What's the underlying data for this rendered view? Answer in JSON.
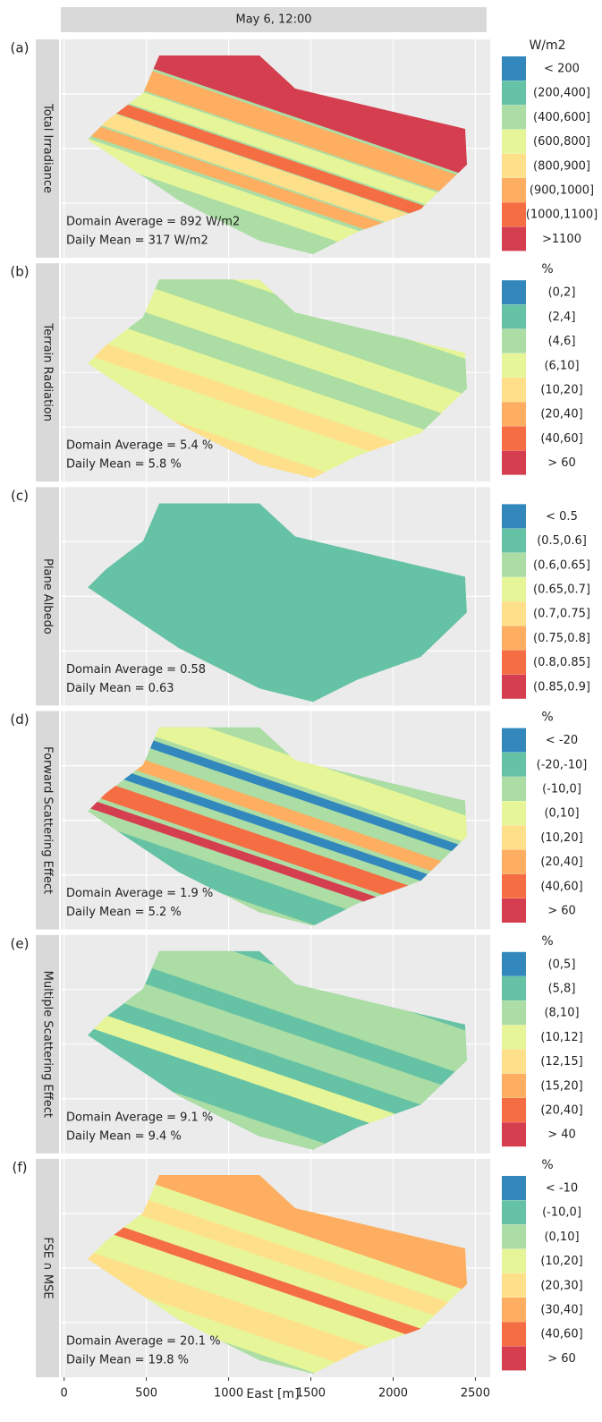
{
  "chart_data": {
    "type": "map",
    "title": "May 6, 12:00",
    "xlabel": "East [m]",
    "xlim": [
      -20,
      2590
    ],
    "xticks": [
      0,
      500,
      1000,
      1500,
      2000,
      2500
    ],
    "colors": [
      "#3288bd",
      "#66c2a5",
      "#abdda4",
      "#e6f598",
      "#fee08b",
      "#fdae61",
      "#f46d43",
      "#d53e4f"
    ],
    "panels": [
      {
        "tag": "(a)",
        "title": "Total Irradiance",
        "legend_title": "W/m2",
        "categories": [
          "< 200",
          "(200,400]",
          "(400,600]",
          "(600,800]",
          "(800,900]",
          "(900,1000]",
          "(1000,1100]",
          ">1100"
        ],
        "annotations": [
          "Domain Average = 892 W/m2",
          "Daily Mean = 317 W/m2"
        ]
      },
      {
        "tag": "(b)",
        "title": "Terrain Radiation",
        "legend_title": "%",
        "categories": [
          "(0,2]",
          "(2,4]",
          "(4,6]",
          "(6,10]",
          "(10,20]",
          "(20,40]",
          "(40,60]",
          "> 60"
        ],
        "annotations": [
          "Domain Average = 5.4 %",
          "Daily Mean = 5.8 %"
        ]
      },
      {
        "tag": "(c)",
        "title": "Plane Albedo",
        "legend_title": "",
        "categories": [
          "< 0.5",
          "(0.5,0.6]",
          "(0.6,0.65]",
          "(0.65,0.7]",
          "(0.7,0.75]",
          "(0.75,0.8]",
          "(0.8,0.85]",
          "(0.85,0.9]"
        ],
        "annotations": [
          "Domain Average = 0.58",
          "Daily Mean = 0.63"
        ]
      },
      {
        "tag": "(d)",
        "title": "Forward Scattering Effect",
        "legend_title": "%",
        "categories": [
          "< -20",
          "(-20,-10]",
          "(-10,0]",
          "(0,10]",
          "(10,20]",
          "(20,40]",
          "(40,60]",
          "> 60"
        ],
        "annotations": [
          "Domain Average = 1.9 %",
          "Daily Mean = 5.2 %"
        ]
      },
      {
        "tag": "(e)",
        "title": "Multiple Scattering Effect",
        "legend_title": "%",
        "categories": [
          "(0,5]",
          "(5,8]",
          "(8,10]",
          "(10,12]",
          "(12,15]",
          "(15,20]",
          "(20,40]",
          "> 40"
        ],
        "annotations": [
          "Domain Average = 9.1 %",
          "Daily Mean = 9.4 %"
        ]
      },
      {
        "tag": "(f)",
        "title": "FSE ∩ MSE",
        "legend_title": "%",
        "categories": [
          "< -10",
          "(-10,0]",
          "(0,10]",
          "(10,20]",
          "(20,30]",
          "(30,40]",
          "(40,60]",
          "> 60"
        ],
        "annotations": [
          "Domain Average = 20.1 %",
          "Daily Mean = 19.8 %"
        ]
      }
    ]
  }
}
